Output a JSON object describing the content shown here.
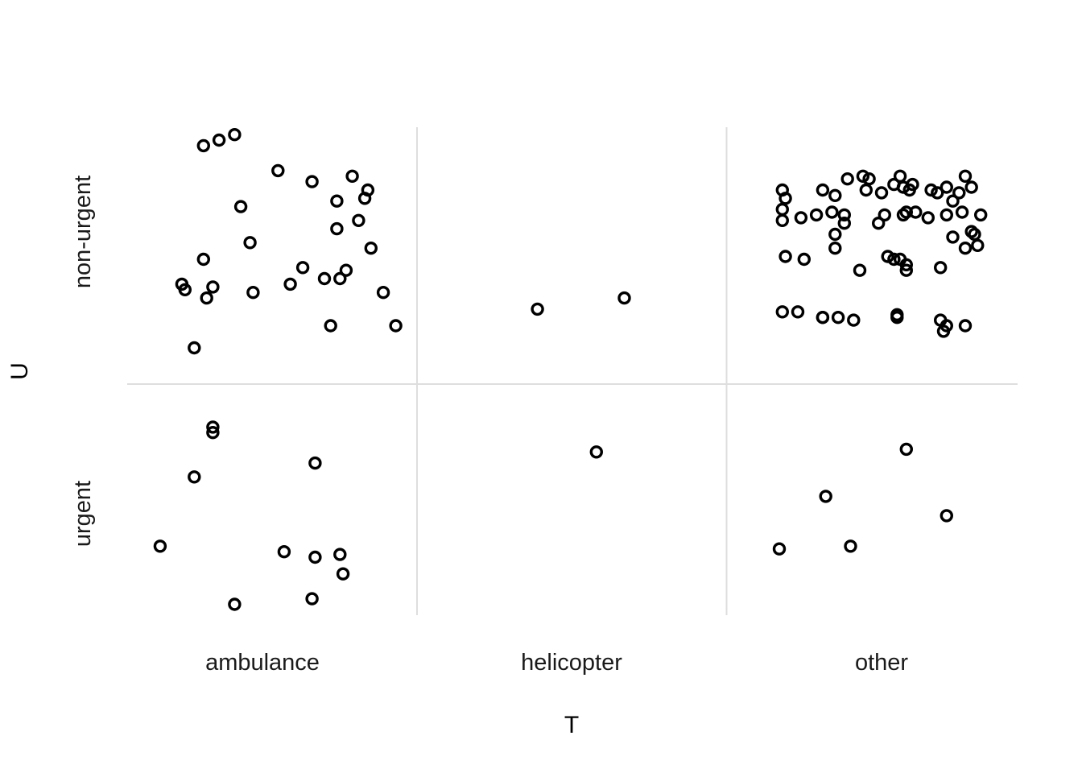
{
  "chart_data": {
    "type": "scatter",
    "title": "",
    "xlabel": "T",
    "ylabel": "U",
    "x_categories": [
      "ambulance",
      "helicopter",
      "other"
    ],
    "y_categories": [
      "urgent",
      "non-urgent"
    ],
    "jittered": true,
    "grid": true,
    "legend": "none",
    "points": [
      {
        "x": "ambulance",
        "y": "non-urgent",
        "jx": 0.31,
        "jy": 0.05
      },
      {
        "x": "ambulance",
        "y": "non-urgent",
        "jx": 0.29,
        "jy": 0.21
      },
      {
        "x": "ambulance",
        "y": "non-urgent",
        "jx": 0.24,
        "jy": 0.02
      },
      {
        "x": "ambulance",
        "y": "non-urgent",
        "jx": 0.24,
        "jy": 0.12
      },
      {
        "x": "ambulance",
        "y": "non-urgent",
        "jx": 0.16,
        "jy": 0.19
      },
      {
        "x": "ambulance",
        "y": "non-urgent",
        "jx": 0.05,
        "jy": 0.23
      },
      {
        "x": "ambulance",
        "y": "non-urgent",
        "jx": -0.09,
        "jy": 0.36
      },
      {
        "x": "ambulance",
        "y": "non-urgent",
        "jx": -0.14,
        "jy": 0.34
      },
      {
        "x": "ambulance",
        "y": "non-urgent",
        "jx": -0.19,
        "jy": 0.32
      },
      {
        "x": "ambulance",
        "y": "non-urgent",
        "jx": -0.07,
        "jy": 0.1
      },
      {
        "x": "ambulance",
        "y": "non-urgent",
        "jx": -0.04,
        "jy": -0.03
      },
      {
        "x": "ambulance",
        "y": "non-urgent",
        "jx": -0.19,
        "jy": -0.09
      },
      {
        "x": "ambulance",
        "y": "non-urgent",
        "jx": -0.16,
        "jy": -0.19
      },
      {
        "x": "ambulance",
        "y": "non-urgent",
        "jx": -0.18,
        "jy": -0.23
      },
      {
        "x": "ambulance",
        "y": "non-urgent",
        "jx": -0.25,
        "jy": -0.2
      },
      {
        "x": "ambulance",
        "y": "non-urgent",
        "jx": -0.26,
        "jy": -0.18
      },
      {
        "x": "ambulance",
        "y": "non-urgent",
        "jx": -0.03,
        "jy": -0.21
      },
      {
        "x": "ambulance",
        "y": "non-urgent",
        "jx": 0.13,
        "jy": -0.12
      },
      {
        "x": "ambulance",
        "y": "non-urgent",
        "jx": 0.09,
        "jy": -0.18
      },
      {
        "x": "ambulance",
        "y": "non-urgent",
        "jx": 0.2,
        "jy": -0.16
      },
      {
        "x": "ambulance",
        "y": "non-urgent",
        "jx": 0.25,
        "jy": -0.16
      },
      {
        "x": "ambulance",
        "y": "non-urgent",
        "jx": 0.27,
        "jy": -0.13
      },
      {
        "x": "ambulance",
        "y": "non-urgent",
        "jx": 0.33,
        "jy": 0.13
      },
      {
        "x": "ambulance",
        "y": "non-urgent",
        "jx": 0.34,
        "jy": 0.16
      },
      {
        "x": "ambulance",
        "y": "non-urgent",
        "jx": 0.35,
        "jy": -0.05
      },
      {
        "x": "ambulance",
        "y": "non-urgent",
        "jx": 0.39,
        "jy": -0.21
      },
      {
        "x": "ambulance",
        "y": "non-urgent",
        "jx": 0.43,
        "jy": -0.33
      },
      {
        "x": "ambulance",
        "y": "non-urgent",
        "jx": 0.22,
        "jy": -0.33
      },
      {
        "x": "ambulance",
        "y": "non-urgent",
        "jx": -0.22,
        "jy": -0.41
      },
      {
        "x": "ambulance",
        "y": "urgent",
        "jx": -0.16,
        "jy": 0.31
      },
      {
        "x": "ambulance",
        "y": "urgent",
        "jx": -0.16,
        "jy": 0.29
      },
      {
        "x": "ambulance",
        "y": "urgent",
        "jx": -0.22,
        "jy": 0.13
      },
      {
        "x": "ambulance",
        "y": "urgent",
        "jx": 0.17,
        "jy": 0.18
      },
      {
        "x": "ambulance",
        "y": "urgent",
        "jx": -0.33,
        "jy": -0.12
      },
      {
        "x": "ambulance",
        "y": "urgent",
        "jx": 0.07,
        "jy": -0.14
      },
      {
        "x": "ambulance",
        "y": "urgent",
        "jx": 0.17,
        "jy": -0.16
      },
      {
        "x": "ambulance",
        "y": "urgent",
        "jx": 0.25,
        "jy": -0.15
      },
      {
        "x": "ambulance",
        "y": "urgent",
        "jx": 0.26,
        "jy": -0.22
      },
      {
        "x": "ambulance",
        "y": "urgent",
        "jx": 0.16,
        "jy": -0.31
      },
      {
        "x": "ambulance",
        "y": "urgent",
        "jx": -0.09,
        "jy": -0.33
      },
      {
        "x": "helicopter",
        "y": "non-urgent",
        "jx": -0.11,
        "jy": -0.27
      },
      {
        "x": "helicopter",
        "y": "non-urgent",
        "jx": 0.17,
        "jy": -0.23
      },
      {
        "x": "helicopter",
        "y": "urgent",
        "jx": 0.08,
        "jy": 0.22
      },
      {
        "x": "other",
        "y": "non-urgent",
        "jx": -0.19,
        "jy": 0.16
      },
      {
        "x": "other",
        "y": "non-urgent",
        "jx": -0.11,
        "jy": 0.2
      },
      {
        "x": "other",
        "y": "non-urgent",
        "jx": -0.06,
        "jy": 0.21
      },
      {
        "x": "other",
        "y": "non-urgent",
        "jx": -0.05,
        "jy": 0.16
      },
      {
        "x": "other",
        "y": "non-urgent",
        "jx": 0.0,
        "jy": 0.15
      },
      {
        "x": "other",
        "y": "non-urgent",
        "jx": 0.04,
        "jy": 0.18
      },
      {
        "x": "other",
        "y": "non-urgent",
        "jx": 0.06,
        "jy": 0.21
      },
      {
        "x": "other",
        "y": "non-urgent",
        "jx": 0.07,
        "jy": 0.17
      },
      {
        "x": "other",
        "y": "non-urgent",
        "jx": 0.1,
        "jy": 0.18
      },
      {
        "x": "other",
        "y": "non-urgent",
        "jx": 0.16,
        "jy": 0.16
      },
      {
        "x": "other",
        "y": "non-urgent",
        "jx": 0.21,
        "jy": 0.17
      },
      {
        "x": "other",
        "y": "non-urgent",
        "jx": 0.27,
        "jy": 0.21
      },
      {
        "x": "other",
        "y": "non-urgent",
        "jx": 0.29,
        "jy": 0.17
      },
      {
        "x": "other",
        "y": "non-urgent",
        "jx": 0.25,
        "jy": 0.15
      },
      {
        "x": "other",
        "y": "non-urgent",
        "jx": 0.18,
        "jy": 0.15
      },
      {
        "x": "other",
        "y": "non-urgent",
        "jx": 0.09,
        "jy": 0.16
      },
      {
        "x": "other",
        "y": "non-urgent",
        "jx": -0.04,
        "jy": 0.2
      },
      {
        "x": "other",
        "y": "non-urgent",
        "jx": -0.32,
        "jy": 0.16
      },
      {
        "x": "other",
        "y": "non-urgent",
        "jx": -0.32,
        "jy": 0.09
      },
      {
        "x": "other",
        "y": "non-urgent",
        "jx": -0.21,
        "jy": 0.07
      },
      {
        "x": "other",
        "y": "non-urgent",
        "jx": -0.16,
        "jy": 0.08
      },
      {
        "x": "other",
        "y": "non-urgent",
        "jx": -0.12,
        "jy": 0.07
      },
      {
        "x": "other",
        "y": "non-urgent",
        "jx": -0.12,
        "jy": 0.04
      },
      {
        "x": "other",
        "y": "non-urgent",
        "jx": -0.01,
        "jy": 0.04
      },
      {
        "x": "other",
        "y": "non-urgent",
        "jx": 0.01,
        "jy": 0.07
      },
      {
        "x": "other",
        "y": "non-urgent",
        "jx": 0.07,
        "jy": 0.07
      },
      {
        "x": "other",
        "y": "non-urgent",
        "jx": 0.08,
        "jy": 0.08
      },
      {
        "x": "other",
        "y": "non-urgent",
        "jx": 0.11,
        "jy": 0.08
      },
      {
        "x": "other",
        "y": "non-urgent",
        "jx": 0.15,
        "jy": 0.06
      },
      {
        "x": "other",
        "y": "non-urgent",
        "jx": 0.21,
        "jy": 0.07
      },
      {
        "x": "other",
        "y": "non-urgent",
        "jx": 0.23,
        "jy": 0.12
      },
      {
        "x": "other",
        "y": "non-urgent",
        "jx": 0.26,
        "jy": 0.08
      },
      {
        "x": "other",
        "y": "non-urgent",
        "jx": 0.32,
        "jy": 0.07
      },
      {
        "x": "other",
        "y": "non-urgent",
        "jx": 0.29,
        "jy": 0.01
      },
      {
        "x": "other",
        "y": "non-urgent",
        "jx": 0.23,
        "jy": -0.01
      },
      {
        "x": "other",
        "y": "non-urgent",
        "jx": 0.27,
        "jy": -0.05
      },
      {
        "x": "other",
        "y": "non-urgent",
        "jx": 0.31,
        "jy": -0.04
      },
      {
        "x": "other",
        "y": "non-urgent",
        "jx": 0.3,
        "jy": 0.0
      },
      {
        "x": "other",
        "y": "non-urgent",
        "jx": -0.32,
        "jy": 0.05
      },
      {
        "x": "other",
        "y": "non-urgent",
        "jx": -0.31,
        "jy": 0.13
      },
      {
        "x": "other",
        "y": "non-urgent",
        "jx": -0.26,
        "jy": 0.06
      },
      {
        "x": "other",
        "y": "non-urgent",
        "jx": -0.31,
        "jy": -0.08
      },
      {
        "x": "other",
        "y": "non-urgent",
        "jx": -0.25,
        "jy": -0.09
      },
      {
        "x": "other",
        "y": "non-urgent",
        "jx": -0.15,
        "jy": -0.05
      },
      {
        "x": "other",
        "y": "non-urgent",
        "jx": -0.15,
        "jy": 0.0
      },
      {
        "x": "other",
        "y": "non-urgent",
        "jx": -0.07,
        "jy": -0.13
      },
      {
        "x": "other",
        "y": "non-urgent",
        "jx": 0.02,
        "jy": -0.08
      },
      {
        "x": "other",
        "y": "non-urgent",
        "jx": 0.04,
        "jy": -0.09
      },
      {
        "x": "other",
        "y": "non-urgent",
        "jx": 0.06,
        "jy": -0.09
      },
      {
        "x": "other",
        "y": "non-urgent",
        "jx": 0.08,
        "jy": -0.11
      },
      {
        "x": "other",
        "y": "non-urgent",
        "jx": 0.08,
        "jy": -0.13
      },
      {
        "x": "other",
        "y": "non-urgent",
        "jx": 0.19,
        "jy": -0.12
      },
      {
        "x": "other",
        "y": "non-urgent",
        "jx": -0.32,
        "jy": -0.28
      },
      {
        "x": "other",
        "y": "non-urgent",
        "jx": -0.27,
        "jy": -0.28
      },
      {
        "x": "other",
        "y": "non-urgent",
        "jx": -0.19,
        "jy": -0.3
      },
      {
        "x": "other",
        "y": "non-urgent",
        "jx": -0.14,
        "jy": -0.3
      },
      {
        "x": "other",
        "y": "non-urgent",
        "jx": -0.09,
        "jy": -0.31
      },
      {
        "x": "other",
        "y": "non-urgent",
        "jx": 0.05,
        "jy": -0.29
      },
      {
        "x": "other",
        "y": "non-urgent",
        "jx": 0.05,
        "jy": -0.3
      },
      {
        "x": "other",
        "y": "non-urgent",
        "jx": 0.19,
        "jy": -0.31
      },
      {
        "x": "other",
        "y": "non-urgent",
        "jx": 0.2,
        "jy": -0.35
      },
      {
        "x": "other",
        "y": "non-urgent",
        "jx": 0.21,
        "jy": -0.33
      },
      {
        "x": "other",
        "y": "non-urgent",
        "jx": 0.27,
        "jy": -0.33
      },
      {
        "x": "other",
        "y": "non-urgent",
        "jx": -0.19,
        "jy": -0.3
      },
      {
        "x": "other",
        "y": "non-urgent",
        "jx": -0.15,
        "jy": 0.14
      },
      {
        "x": "other",
        "y": "urgent",
        "jx": 0.08,
        "jy": 0.23
      },
      {
        "x": "other",
        "y": "urgent",
        "jx": -0.18,
        "jy": 0.06
      },
      {
        "x": "other",
        "y": "urgent",
        "jx": 0.21,
        "jy": -0.01
      },
      {
        "x": "other",
        "y": "urgent",
        "jx": -0.33,
        "jy": -0.13
      },
      {
        "x": "other",
        "y": "urgent",
        "jx": -0.1,
        "jy": -0.12
      }
    ]
  }
}
